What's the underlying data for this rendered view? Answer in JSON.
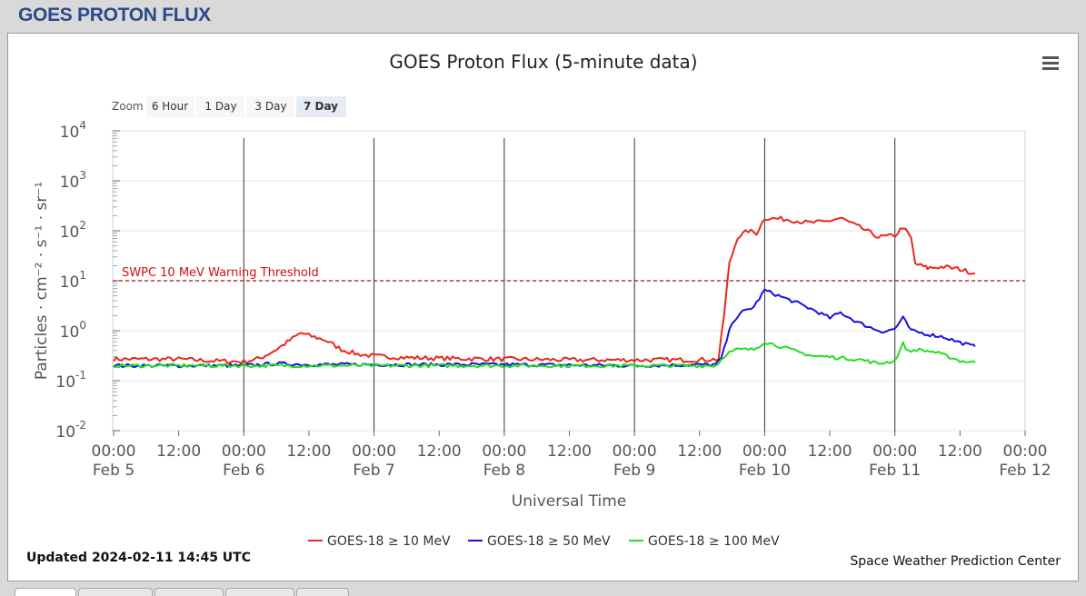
{
  "page": {
    "title": "GOES PROTON FLUX"
  },
  "menu_icon": "hamburger-menu-icon",
  "zoom": {
    "label": "Zoom",
    "buttons": [
      "6 Hour",
      "1 Day",
      "3 Day",
      "7 Day"
    ],
    "selected": "7 Day"
  },
  "updated": "Updated 2024-02-11 14:45 UTC",
  "credit": "Space Weather Prediction Center",
  "colors": {
    "ge10": "#e8281e",
    "ge50": "#1a10d8",
    "ge100": "#20e020",
    "threshold": "#a01020",
    "title": "#2a4a8a"
  },
  "chart_data": {
    "type": "line",
    "title": "GOES Proton Flux (5-minute data)",
    "xlabel": "Universal Time",
    "ylabel": "Particles · cm⁻² · s⁻¹ · sr⁻¹",
    "yscale": "log",
    "ylim": [
      0.01,
      10000
    ],
    "y_ticks": [
      {
        "base": "10",
        "exp": "-2"
      },
      {
        "base": "10",
        "exp": "-1"
      },
      {
        "base": "10",
        "exp": "0"
      },
      {
        "base": "10",
        "exp": "1"
      },
      {
        "base": "10",
        "exp": "2"
      },
      {
        "base": "10",
        "exp": "3"
      },
      {
        "base": "10",
        "exp": "4"
      }
    ],
    "x_ticks": [
      {
        "time": "00:00",
        "date": "Feb 5"
      },
      {
        "time": "12:00",
        "date": ""
      },
      {
        "time": "00:00",
        "date": "Feb 6"
      },
      {
        "time": "12:00",
        "date": ""
      },
      {
        "time": "00:00",
        "date": "Feb 7"
      },
      {
        "time": "12:00",
        "date": ""
      },
      {
        "time": "00:00",
        "date": "Feb 8"
      },
      {
        "time": "12:00",
        "date": ""
      },
      {
        "time": "00:00",
        "date": "Feb 9"
      },
      {
        "time": "12:00",
        "date": ""
      },
      {
        "time": "00:00",
        "date": "Feb 10"
      },
      {
        "time": "12:00",
        "date": ""
      },
      {
        "time": "00:00",
        "date": "Feb 11"
      },
      {
        "time": "12:00",
        "date": ""
      },
      {
        "time": "00:00",
        "date": "Feb 12"
      }
    ],
    "threshold": {
      "label": "SWPC 10 MeV Warning Threshold",
      "value": 10
    },
    "legend_position": "bottom-center",
    "grid": true,
    "series": [
      {
        "name": "GOES-18 ≥ 10 MeV",
        "color": "#e8281e",
        "points": [
          [
            "2024-02-05 00:00",
            0.27
          ],
          [
            "2024-02-05 06:00",
            0.27
          ],
          [
            "2024-02-05 12:00",
            0.27
          ],
          [
            "2024-02-05 18:00",
            0.25
          ],
          [
            "2024-02-06 00:00",
            0.24
          ],
          [
            "2024-02-06 03:00",
            0.28
          ],
          [
            "2024-02-06 06:00",
            0.42
          ],
          [
            "2024-02-06 09:00",
            0.7
          ],
          [
            "2024-02-06 10:30",
            0.9
          ],
          [
            "2024-02-06 12:00",
            0.8
          ],
          [
            "2024-02-06 15:00",
            0.65
          ],
          [
            "2024-02-06 18:00",
            0.42
          ],
          [
            "2024-02-06 21:00",
            0.34
          ],
          [
            "2024-02-07 00:00",
            0.31
          ],
          [
            "2024-02-07 06:00",
            0.29
          ],
          [
            "2024-02-07 12:00",
            0.28
          ],
          [
            "2024-02-08 00:00",
            0.27
          ],
          [
            "2024-02-08 12:00",
            0.26
          ],
          [
            "2024-02-09 00:00",
            0.26
          ],
          [
            "2024-02-09 12:00",
            0.26
          ],
          [
            "2024-02-09 15:30",
            0.27
          ],
          [
            "2024-02-09 16:30",
            2.0
          ],
          [
            "2024-02-09 17:30",
            22
          ],
          [
            "2024-02-09 19:00",
            75
          ],
          [
            "2024-02-09 21:00",
            100
          ],
          [
            "2024-02-09 22:30",
            90
          ],
          [
            "2024-02-10 00:00",
            180
          ],
          [
            "2024-02-10 04:00",
            170
          ],
          [
            "2024-02-10 08:00",
            145
          ],
          [
            "2024-02-10 11:00",
            150
          ],
          [
            "2024-02-10 14:00",
            180
          ],
          [
            "2024-02-10 18:00",
            110
          ],
          [
            "2024-02-10 21:00",
            75
          ],
          [
            "2024-02-11 00:00",
            80
          ],
          [
            "2024-02-11 01:30",
            120
          ],
          [
            "2024-02-11 03:00",
            70
          ],
          [
            "2024-02-11 03:45",
            22
          ],
          [
            "2024-02-11 06:00",
            18
          ],
          [
            "2024-02-11 09:00",
            19
          ],
          [
            "2024-02-11 12:00",
            17
          ],
          [
            "2024-02-11 14:45",
            14
          ]
        ]
      },
      {
        "name": "GOES-18 ≥ 50 MeV",
        "color": "#1a10d8",
        "points": [
          [
            "2024-02-05 00:00",
            0.2
          ],
          [
            "2024-02-06 00:00",
            0.2
          ],
          [
            "2024-02-06 06:00",
            0.22
          ],
          [
            "2024-02-06 12:00",
            0.21
          ],
          [
            "2024-02-07 00:00",
            0.21
          ],
          [
            "2024-02-08 00:00",
            0.21
          ],
          [
            "2024-02-09 00:00",
            0.2
          ],
          [
            "2024-02-09 15:00",
            0.21
          ],
          [
            "2024-02-09 16:00",
            0.28
          ],
          [
            "2024-02-09 18:00",
            1.5
          ],
          [
            "2024-02-09 20:00",
            2.4
          ],
          [
            "2024-02-09 22:00",
            3.0
          ],
          [
            "2024-02-10 00:00",
            6.5
          ],
          [
            "2024-02-10 03:00",
            4.8
          ],
          [
            "2024-02-10 06:00",
            3.6
          ],
          [
            "2024-02-10 09:00",
            2.6
          ],
          [
            "2024-02-10 12:00",
            1.8
          ],
          [
            "2024-02-10 14:00",
            2.3
          ],
          [
            "2024-02-10 17:00",
            1.5
          ],
          [
            "2024-02-10 20:00",
            1.1
          ],
          [
            "2024-02-10 22:00",
            0.95
          ],
          [
            "2024-02-11 00:00",
            1.1
          ],
          [
            "2024-02-11 01:30",
            1.8
          ],
          [
            "2024-02-11 03:00",
            1.0
          ],
          [
            "2024-02-11 06:00",
            0.85
          ],
          [
            "2024-02-11 09:00",
            0.75
          ],
          [
            "2024-02-11 12:00",
            0.58
          ],
          [
            "2024-02-11 14:45",
            0.48
          ]
        ]
      },
      {
        "name": "GOES-18 ≥ 100 MeV",
        "color": "#20e020",
        "points": [
          [
            "2024-02-05 00:00",
            0.2
          ],
          [
            "2024-02-06 00:00",
            0.2
          ],
          [
            "2024-02-07 00:00",
            0.2
          ],
          [
            "2024-02-08 00:00",
            0.2
          ],
          [
            "2024-02-09 00:00",
            0.2
          ],
          [
            "2024-02-09 15:00",
            0.2
          ],
          [
            "2024-02-09 17:00",
            0.35
          ],
          [
            "2024-02-09 19:00",
            0.42
          ],
          [
            "2024-02-09 22:00",
            0.42
          ],
          [
            "2024-02-10 00:00",
            0.6
          ],
          [
            "2024-02-10 03:00",
            0.48
          ],
          [
            "2024-02-10 06:00",
            0.38
          ],
          [
            "2024-02-10 09:00",
            0.31
          ],
          [
            "2024-02-10 12:00",
            0.3
          ],
          [
            "2024-02-10 15:00",
            0.28
          ],
          [
            "2024-02-10 18:00",
            0.26
          ],
          [
            "2024-02-10 21:00",
            0.22
          ],
          [
            "2024-02-11 00:00",
            0.25
          ],
          [
            "2024-02-11 01:30",
            0.55
          ],
          [
            "2024-02-11 02:30",
            0.38
          ],
          [
            "2024-02-11 04:00",
            0.42
          ],
          [
            "2024-02-11 07:00",
            0.38
          ],
          [
            "2024-02-11 10:00",
            0.3
          ],
          [
            "2024-02-11 12:00",
            0.25
          ],
          [
            "2024-02-11 14:45",
            0.23
          ]
        ]
      }
    ]
  }
}
